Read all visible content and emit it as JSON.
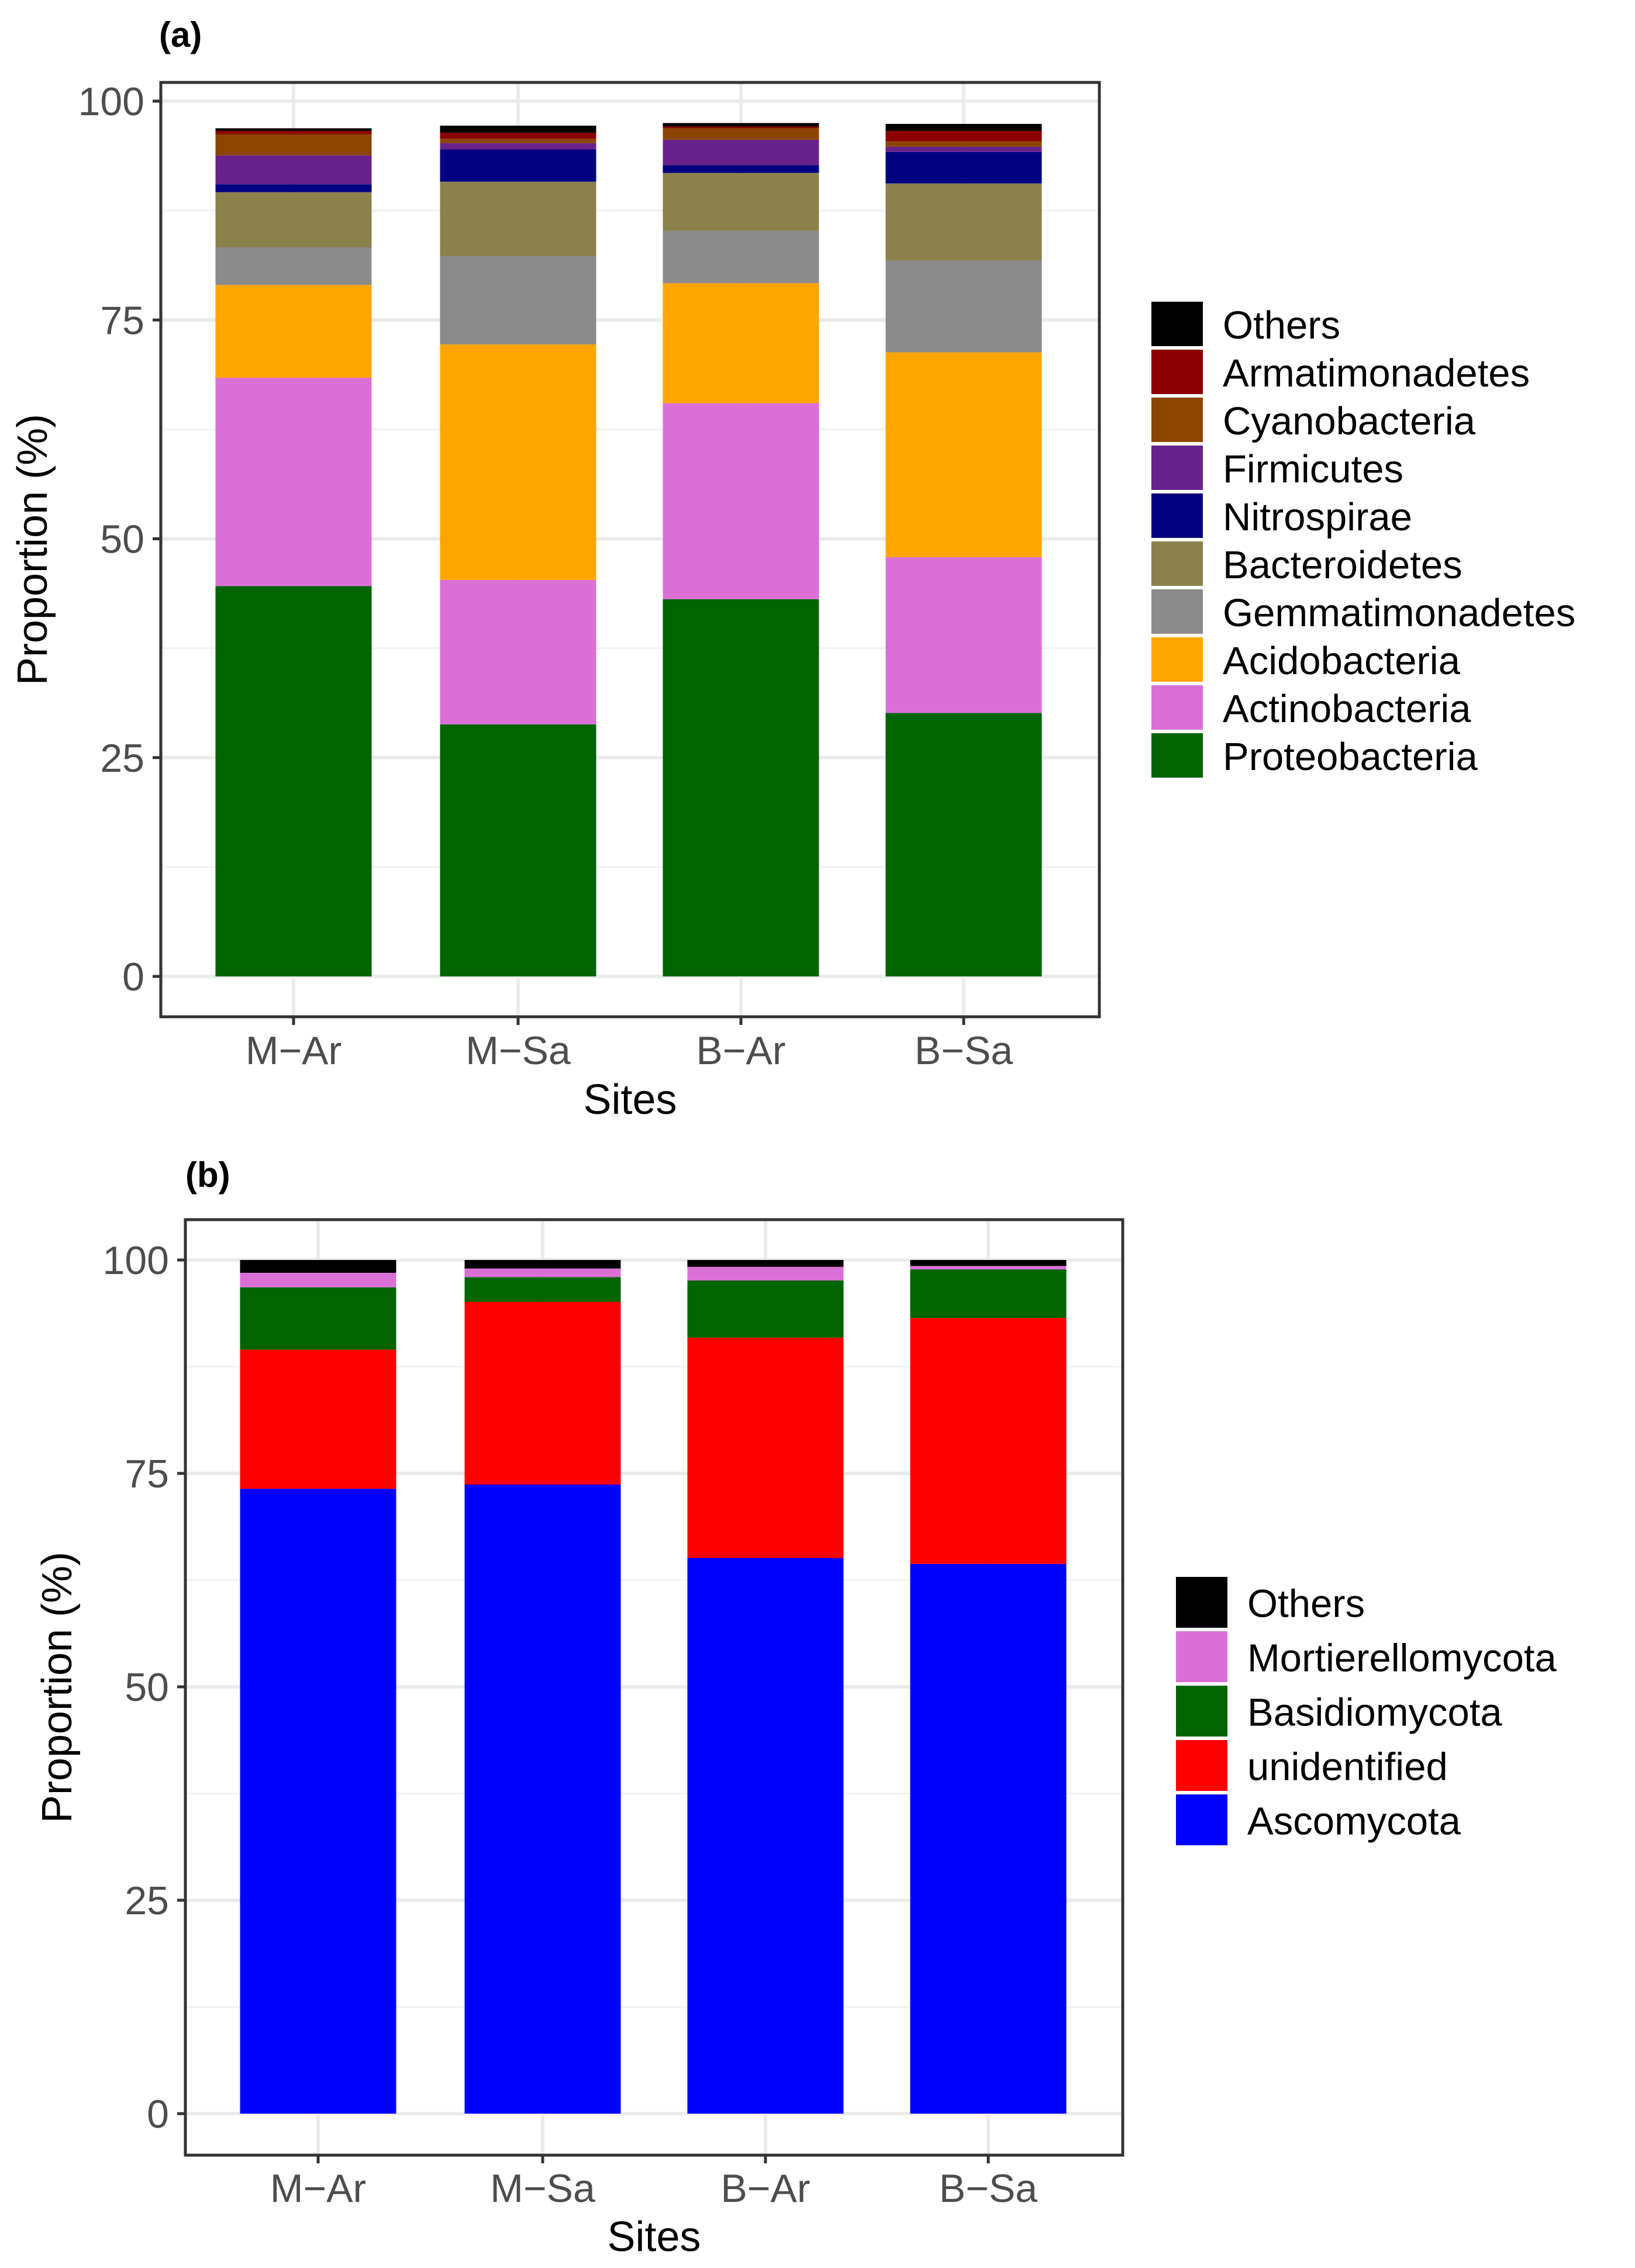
{
  "chart_data": [
    {
      "type": "bar",
      "stacked": true,
      "panel_label": "(a)",
      "title": "",
      "xlabel": "Sites",
      "ylabel": "Proportion (%)",
      "ylim": [
        0,
        100
      ],
      "yticks": [
        "0",
        "25",
        "50",
        "75",
        "100"
      ],
      "grid": true,
      "legend_position": "right",
      "categories": [
        "M−Ar",
        "M−Sa",
        "B−Ar",
        "B−Sa"
      ],
      "series": [
        {
          "name": "Proteobacteria",
          "color": "#006400",
          "values": [
            44.6,
            28.8,
            43.1,
            30.1
          ]
        },
        {
          "name": "Actinobacteria",
          "color": "#DA70D6",
          "values": [
            23.8,
            16.5,
            22.4,
            17.8
          ]
        },
        {
          "name": "Acidobacteria",
          "color": "#FFA500",
          "values": [
            10.6,
            26.9,
            13.7,
            23.4
          ]
        },
        {
          "name": "Gemmatimonadetes",
          "color": "#8B8B8B",
          "values": [
            4.3,
            10.1,
            6.0,
            10.5
          ]
        },
        {
          "name": "Bacteroidetes",
          "color": "#8B814C",
          "values": [
            6.3,
            8.5,
            6.6,
            8.8
          ]
        },
        {
          "name": "Nitrospirae",
          "color": "#000080",
          "values": [
            0.9,
            3.7,
            0.9,
            3.6
          ]
        },
        {
          "name": "Firmicutes",
          "color": "#68228B",
          "values": [
            3.3,
            0.7,
            2.9,
            0.6
          ]
        },
        {
          "name": "Cyanobacteria",
          "color": "#8B4500",
          "values": [
            2.4,
            0.5,
            1.3,
            0.6
          ]
        },
        {
          "name": "Armatimonadetes",
          "color": "#8B0000",
          "values": [
            0.4,
            0.7,
            0.2,
            1.2
          ]
        },
        {
          "name": "Others",
          "color": "#000000",
          "values": [
            0.3,
            0.8,
            0.4,
            0.8
          ]
        }
      ]
    },
    {
      "type": "bar",
      "stacked": true,
      "panel_label": "(b)",
      "title": "",
      "xlabel": "Sites",
      "ylabel": "Proportion (%)",
      "ylim": [
        0,
        100
      ],
      "yticks": [
        "0",
        "25",
        "50",
        "75",
        "100"
      ],
      "grid": true,
      "legend_position": "right",
      "categories": [
        "M−Ar",
        "M−Sa",
        "B−Ar",
        "B−Sa"
      ],
      "series": [
        {
          "name": "Ascomycota",
          "color": "#0000FF",
          "values": [
            73.2,
            73.7,
            65.1,
            64.4
          ]
        },
        {
          "name": "unidentified",
          "color": "#FF0000",
          "values": [
            16.3,
            21.4,
            25.8,
            28.8
          ]
        },
        {
          "name": "Basidiomycota",
          "color": "#006400",
          "values": [
            7.3,
            2.9,
            6.7,
            5.7
          ]
        },
        {
          "name": "Mortierellomycota",
          "color": "#DA70D6",
          "values": [
            1.7,
            1.0,
            1.6,
            0.4
          ]
        },
        {
          "name": "Others",
          "color": "#000000",
          "values": [
            1.5,
            1.0,
            0.8,
            0.7
          ]
        }
      ]
    }
  ]
}
